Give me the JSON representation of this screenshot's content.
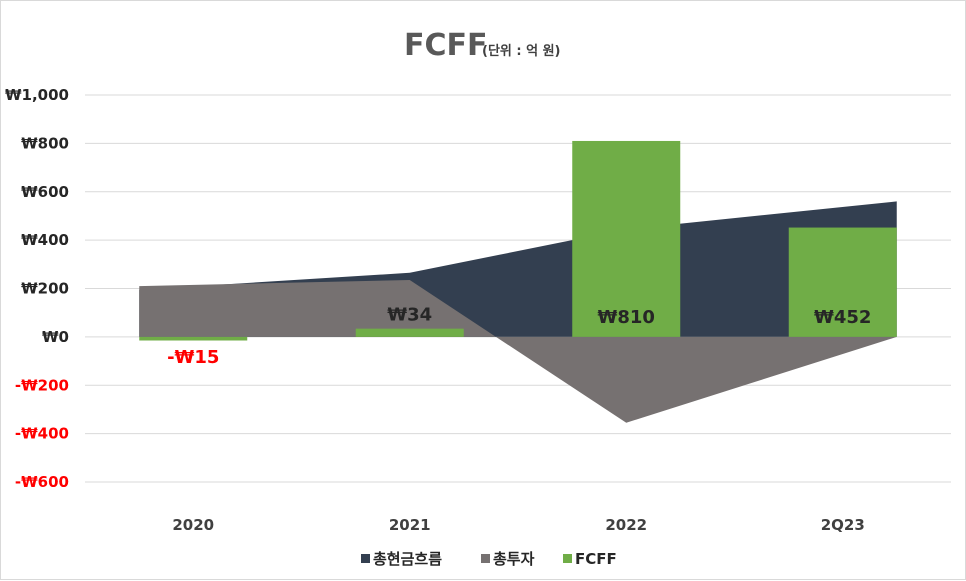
{
  "chart_data": {
    "type": "bar",
    "title": "FCFF",
    "subtitle": "(단위 : 억 원)",
    "categories": [
      "2020",
      "2021",
      "2022",
      "2Q23"
    ],
    "ylim": [
      -600,
      1000
    ],
    "yticks": [
      1000,
      800,
      600,
      400,
      200,
      0,
      -200,
      -400,
      -600
    ],
    "ytick_labels": [
      "₩1,000",
      "₩800",
      "₩600",
      "₩400",
      "₩200",
      "₩0",
      "-₩200",
      "-₩400",
      "-₩600"
    ],
    "grid": true,
    "legend_position": "bottom",
    "series": [
      {
        "name": "총현금흐름",
        "kind": "area",
        "color": "#333f50",
        "values": [
          195,
          265,
          445,
          560
        ]
      },
      {
        "name": "총투자",
        "kind": "area",
        "color": "#767171",
        "values": [
          210,
          235,
          -355,
          0
        ]
      },
      {
        "name": "FCFF",
        "kind": "bar",
        "color": "#70ad47",
        "values": [
          -15,
          34,
          810,
          452
        ],
        "data_labels": [
          "-₩15",
          "₩34",
          "₩810",
          "₩452"
        ]
      }
    ],
    "negative_color": "#ff0000",
    "label_color": "#262626"
  }
}
